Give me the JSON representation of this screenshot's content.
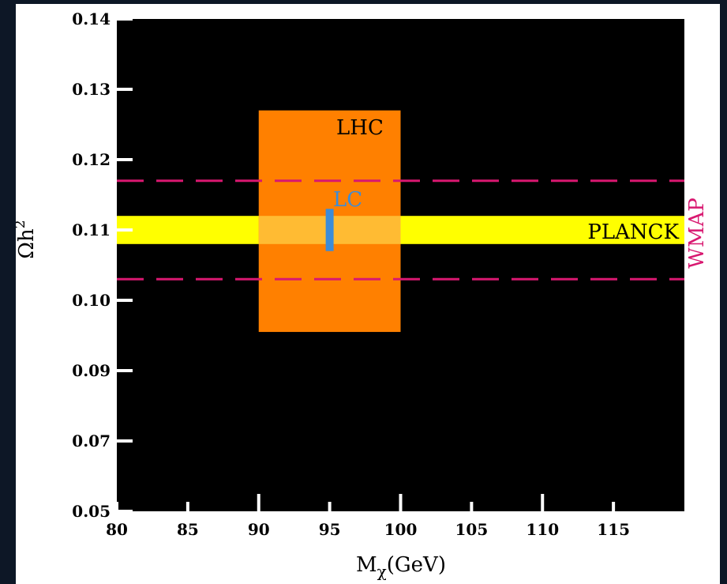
{
  "chart_data": {
    "type": "area",
    "xlabel": "M",
    "xlabel_sub": "χ",
    "xlabel_unit": "(GeV)",
    "ylabel": "Ωh",
    "ylabel_sup": "2",
    "xlim": [
      80,
      120
    ],
    "ylim": [
      0.05,
      0.14
    ],
    "x_ticks": [
      80,
      85,
      90,
      95,
      100,
      105,
      110,
      115
    ],
    "x_tick_labels": [
      "80",
      "85",
      "90",
      "95",
      "100",
      "105",
      "110",
      "115"
    ],
    "y_ticks": [
      0.05,
      0.07,
      0.09,
      0.1,
      0.11,
      0.12,
      0.13,
      0.14
    ],
    "y_tick_labels": [
      "0.05",
      "0.07",
      "0.09",
      "0.10",
      "0.11",
      "0.12",
      "0.13",
      "0.14"
    ],
    "grid": false,
    "regions": {
      "lhc": {
        "label": "LHC",
        "x": [
          90,
          100
        ],
        "y": [
          0.0955,
          0.127
        ],
        "color": "#ff8000"
      },
      "planck": {
        "label": "PLANCK",
        "x": [
          80,
          120
        ],
        "y": [
          0.108,
          0.112
        ],
        "color": "#ffff00"
      },
      "lc": {
        "label": "LC",
        "x": 95,
        "y": [
          0.107,
          0.113
        ],
        "color": "#3c8cd8"
      },
      "wmap": {
        "label": "WMAP",
        "y": [
          0.103,
          0.117
        ],
        "color": "#d81870",
        "style": "dashed"
      }
    },
    "colors": {
      "plot_background": "#000000",
      "page_background": "#0d1726",
      "overlap": "#ffbb33"
    }
  }
}
